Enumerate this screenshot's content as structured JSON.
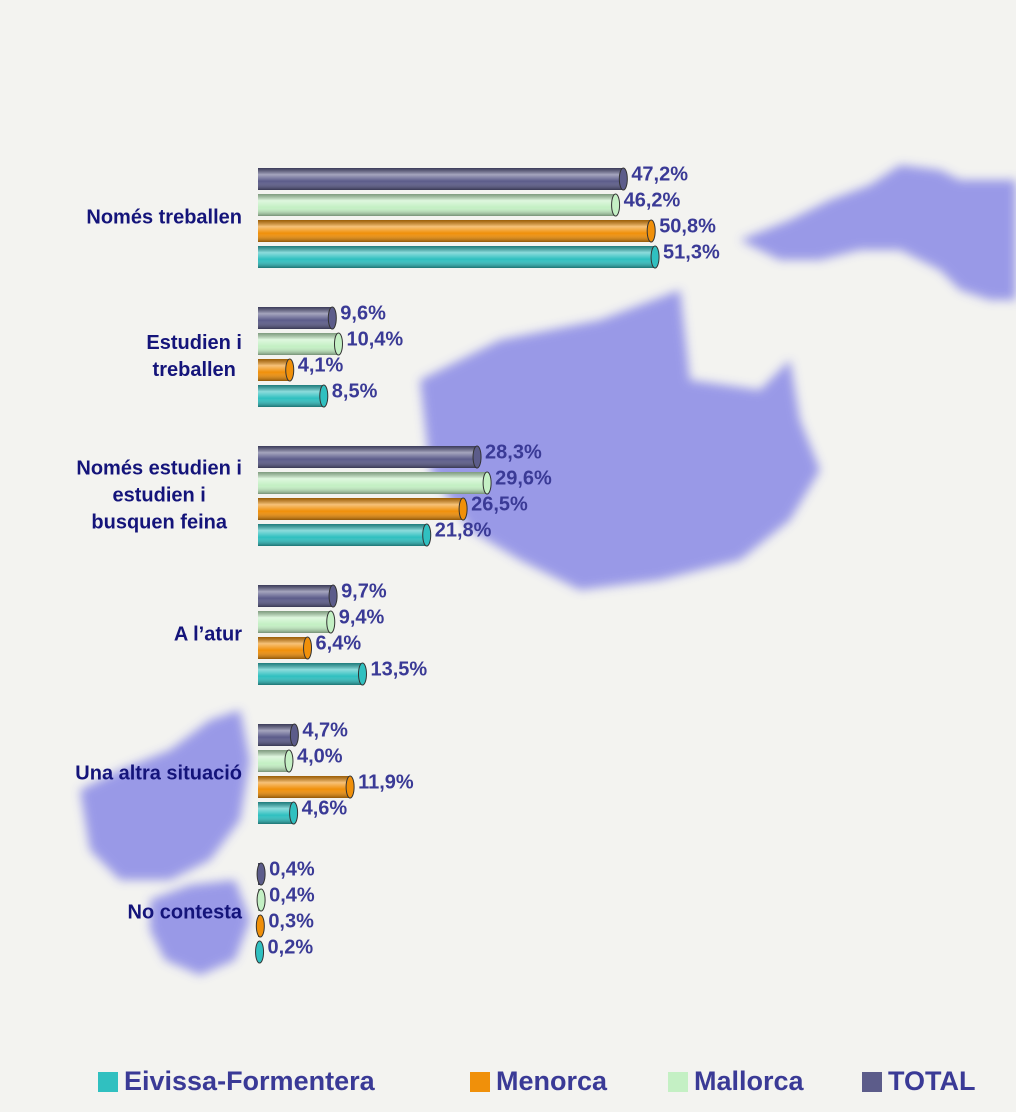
{
  "chart_data": {
    "type": "bar",
    "orientation": "horizontal",
    "categories": [
      "Només treballen",
      "Estudien i\ntreballen",
      "Només estudien i\nestudien i\nbusquen feina",
      "A l’atur",
      "Una altra situació",
      "No contesta"
    ],
    "series": [
      {
        "name": "Eivissa-Formentera",
        "color": "#30c0c0",
        "values": [
          51.3,
          8.5,
          21.8,
          13.5,
          4.6,
          0.2
        ],
        "value_labels": [
          "51,3%",
          "8,5%",
          "21,8%",
          "13,5%",
          "4,6%",
          "0,2%"
        ]
      },
      {
        "name": "Menorca",
        "color": "#f0900a",
        "values": [
          50.8,
          4.1,
          26.5,
          6.4,
          11.9,
          0.3
        ],
        "value_labels": [
          "50,8%",
          "4,1%",
          "26,5%",
          "6,4%",
          "11,9%",
          "0,3%"
        ]
      },
      {
        "name": "Mallorca",
        "color": "#c4f0c4",
        "values": [
          46.2,
          10.4,
          29.6,
          9.4,
          4.0,
          0.4
        ],
        "value_labels": [
          "46,2%",
          "10,4%",
          "29,6%",
          "9,4%",
          "4,0%",
          "0,4%"
        ]
      },
      {
        "name": "TOTAL",
        "color": "#5c5c8a",
        "values": [
          47.2,
          9.6,
          28.3,
          9.7,
          4.7,
          0.4
        ],
        "value_labels": [
          "47,2%",
          "9,6%",
          "28,3%",
          "9,7%",
          "4,7%",
          "0,4%"
        ]
      }
    ],
    "legend": "bottom"
  }
}
